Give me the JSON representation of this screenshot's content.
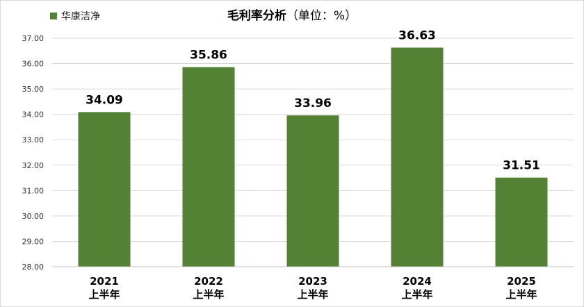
{
  "chart_data": {
    "type": "bar",
    "title": "毛利率分析",
    "title_unit": "（单位：%）",
    "categories": [
      "2021\n上半年",
      "2022\n上半年",
      "2023\n上半年",
      "2024\n上半年",
      "2025\n上半年"
    ],
    "series": [
      {
        "name": "华康洁净",
        "color": "#548235",
        "values": [
          34.09,
          35.86,
          33.96,
          36.63,
          31.51
        ]
      }
    ],
    "data_labels": [
      "34.09",
      "35.86",
      "33.96",
      "36.63",
      "31.51"
    ],
    "ylim": [
      28,
      37
    ],
    "yticks": [
      "28.00",
      "29.00",
      "30.00",
      "31.00",
      "32.00",
      "33.00",
      "34.00",
      "35.00",
      "36.00",
      "37.00"
    ],
    "grid": true,
    "legend_position": "top-left"
  }
}
